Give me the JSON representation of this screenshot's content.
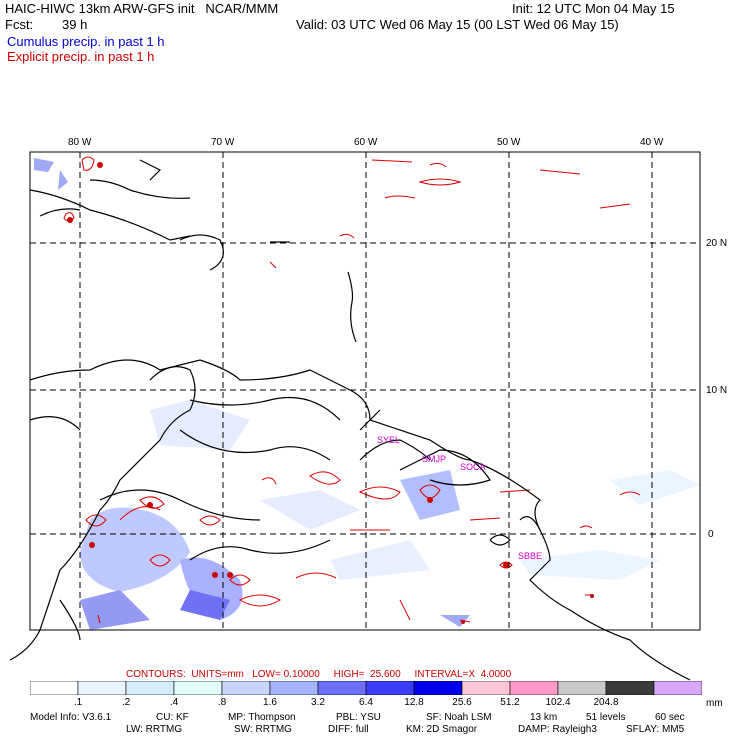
{
  "header": {
    "title": "HAIC-HIWC 13km ARW-GFS init   NCAR/MMM",
    "init": "Init: 12 UTC Mon 04 May 15",
    "fcst_label": "Fcst:",
    "fcst_value": "39 h",
    "valid": "Valid: 03 UTC Wed 06 May 15 (00 LST Wed 06 May 15)",
    "legend_cumulus": "Cumulus precip. in past 1 h",
    "legend_explicit": "Explicit precip. in past 1 h",
    "colors": {
      "cumulus": "#0000cc",
      "explicit": "#cc0000"
    }
  },
  "map": {
    "lon_labels": [
      "80 W",
      "70 W",
      "60 W",
      "50 W",
      "40 W"
    ],
    "lat_labels": [
      "20 N",
      "10 N",
      "0"
    ],
    "stations": [
      "SYEL",
      "SMJP",
      "SOCA",
      "SBBE"
    ],
    "station_color": "#cc00cc",
    "land_outline_color": "#000000"
  },
  "contours": {
    "text": "CONTOURS:  UNITS=mm   LOW= 0.10000     HIGH=  25.600     INTERVAL=X  4.0000",
    "color": "#cc0000"
  },
  "colorbar": {
    "unit": "mm",
    "labels": [
      ".1",
      ".2",
      ".4",
      ".8",
      "1.6",
      "3.2",
      "6.4",
      "12.8",
      "25.6",
      "51.2",
      "102.4",
      "204.8"
    ],
    "colors": [
      "#ffffff",
      "#e8f4ff",
      "#d6ecff",
      "#e0fff8",
      "#c8d4ff",
      "#a6b4ff",
      "#6e6eff",
      "#3c3cff",
      "#0000e8",
      "#ffc8d8",
      "#ff99c8",
      "#c8c8c8",
      "#3c3c3c",
      "#d8a8ff"
    ]
  },
  "model_info": {
    "line1": [
      "Model Info: V3.6.1",
      "CU: KF",
      "MP: Thompson",
      "PBL: YSU",
      "SF: Noah LSM",
      "13 km",
      "51 levels",
      "60 sec"
    ],
    "line2": [
      "LW: RRTMG",
      "SW: RRTMG",
      "DIFF: full",
      "KM: 2D Smagor",
      "DAMP: Rayleigh3",
      "SFLAY: MM5"
    ]
  }
}
